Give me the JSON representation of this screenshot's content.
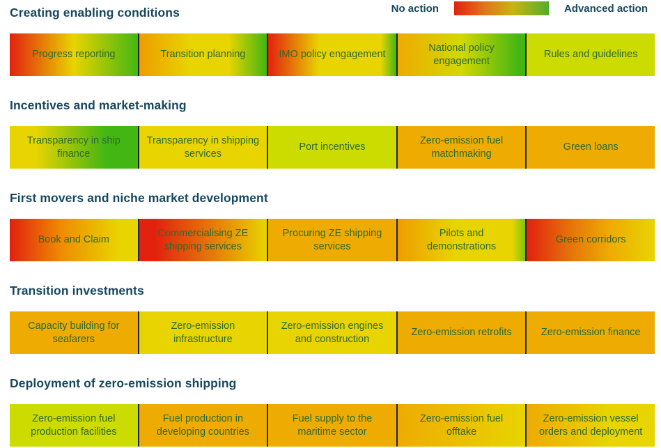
{
  "palette": {
    "red": "#e2210f",
    "orange": "#ee9d00",
    "amber": "#eeab02",
    "yellow": "#e8d400",
    "yellow_green": "#ccdb00",
    "green": "#44b613",
    "heading_text": "#17485f",
    "cell_text": "#2d6a30",
    "separator": "#1f262b"
  },
  "legend": {
    "left_label": "No action",
    "right_label": "Advanced action",
    "stops": [
      [
        "#e2210f",
        0
      ],
      [
        "#e07818",
        33
      ],
      [
        "#c8b414",
        62
      ],
      [
        "#53ae27",
        100
      ]
    ]
  },
  "sections": [
    {
      "title": "Creating enabling conditions",
      "cells": [
        {
          "label": "Progress reporting",
          "stops": [
            [
              "#e2210f",
              0
            ],
            [
              "#e8d400",
              50
            ],
            [
              "#44b613",
              100
            ]
          ]
        },
        {
          "label": "Transition planning",
          "stops": [
            [
              "#ee9d00",
              0
            ],
            [
              "#e8d400",
              40
            ],
            [
              "#e8d400",
              70
            ],
            [
              "#44b613",
              100
            ]
          ]
        },
        {
          "label": "IMO policy engagement",
          "stops": [
            [
              "#e2210f",
              0
            ],
            [
              "#e8d400",
              40
            ],
            [
              "#e8d400",
              88
            ],
            [
              "#44b613",
              100
            ]
          ]
        },
        {
          "label": "National policy engagement",
          "stops": [
            [
              "#eeab02",
              0
            ],
            [
              "#d3d800",
              50
            ],
            [
              "#44b613",
              95
            ]
          ]
        },
        {
          "label": "Rules and guidelines",
          "stops": [
            [
              "#ccdb00",
              0
            ]
          ]
        }
      ]
    },
    {
      "title": "Incentives and market-making",
      "cells": [
        {
          "label": "Transparency in ship finance",
          "stops": [
            [
              "#e8d400",
              0
            ],
            [
              "#e8d400",
              20
            ],
            [
              "#44b613",
              75
            ]
          ]
        },
        {
          "label": "Transparency in shipping services",
          "stops": [
            [
              "#e8d400",
              0
            ]
          ]
        },
        {
          "label": "Port incentives",
          "stops": [
            [
              "#ccdb00",
              0
            ]
          ]
        },
        {
          "label": "Zero-emission fuel matchmaking",
          "stops": [
            [
              "#eeab02",
              0
            ]
          ]
        },
        {
          "label": "Green loans",
          "stops": [
            [
              "#eeab02",
              0
            ]
          ]
        }
      ]
    },
    {
      "title": "First movers and niche market development",
      "cells": [
        {
          "label": "Book and Claim",
          "stops": [
            [
              "#e2210f",
              0
            ],
            [
              "#ee8c00",
              40
            ],
            [
              "#e8d400",
              85
            ]
          ]
        },
        {
          "label": "Commercialising ZE shipping services",
          "stops": [
            [
              "#e2210f",
              0
            ],
            [
              "#e2210f",
              12
            ],
            [
              "#e5750a",
              55
            ],
            [
              "#e8d400",
              100
            ]
          ]
        },
        {
          "label": "Procuring ZE shipping services",
          "stops": [
            [
              "#eeab02",
              0
            ]
          ]
        },
        {
          "label": "Pilots and demonstrations",
          "stops": [
            [
              "#ee9d00",
              0
            ],
            [
              "#e8d400",
              45
            ],
            [
              "#e8d400",
              90
            ],
            [
              "#7cc40e",
              100
            ]
          ]
        },
        {
          "label": "Green corridors",
          "stops": [
            [
              "#e2210f",
              0
            ],
            [
              "#e5750a",
              35
            ],
            [
              "#eeab02",
              65
            ],
            [
              "#e8d400",
              100
            ]
          ]
        }
      ]
    },
    {
      "title": "Transition investments",
      "cells": [
        {
          "label": "Capacity building for seafarers",
          "stops": [
            [
              "#eeab02",
              0
            ]
          ]
        },
        {
          "label": "Zero-emission infrastructure",
          "stops": [
            [
              "#e8d400",
              0
            ]
          ]
        },
        {
          "label": "Zero-emission engines and construction",
          "stops": [
            [
              "#e8d400",
              0
            ]
          ]
        },
        {
          "label": "Zero-emission retrofits",
          "stops": [
            [
              "#eeab02",
              0
            ]
          ]
        },
        {
          "label": "Zero-emission finance",
          "stops": [
            [
              "#eeab02",
              0
            ]
          ]
        }
      ]
    },
    {
      "title": "Deployment of zero-emission shipping",
      "cells": [
        {
          "label": "Zero-emission fuel production facilities",
          "stops": [
            [
              "#ccdb00",
              0
            ]
          ]
        },
        {
          "label": "Fuel production in developing countries",
          "stops": [
            [
              "#eeab02",
              0
            ]
          ]
        },
        {
          "label": "Fuel supply to the maritime sector",
          "stops": [
            [
              "#eeab02",
              0
            ]
          ]
        },
        {
          "label": "Zero-emission fuel offtake",
          "stops": [
            [
              "#eeab02",
              0
            ],
            [
              "#e8d400",
              100
            ]
          ]
        },
        {
          "label": "Zero-emission vessel orders and deployment",
          "stops": [
            [
              "#eeab02",
              0
            ],
            [
              "#e8d400",
              65
            ]
          ]
        }
      ]
    }
  ],
  "chart_data": {
    "type": "heatmap",
    "scale": {
      "min_label": "No action",
      "max_label": "Advanced action",
      "min_value": 0,
      "max_value": 1,
      "min_color": "#e2210f",
      "mid_color": "#e8d400",
      "max_color": "#44b613",
      "legend_position": "top-right"
    },
    "rows": [
      {
        "category": "Creating enabling conditions",
        "items": [
          {
            "label": "Progress reporting",
            "status_range": [
              0.0,
              1.0
            ]
          },
          {
            "label": "Transition planning",
            "status_range": [
              0.3,
              1.0
            ]
          },
          {
            "label": "IMO policy engagement",
            "status_range": [
              0.0,
              1.0
            ]
          },
          {
            "label": "National policy engagement",
            "status_range": [
              0.3,
              1.0
            ]
          },
          {
            "label": "Rules and guidelines",
            "status_range": [
              0.6,
              0.6
            ]
          }
        ]
      },
      {
        "category": "Incentives and market-making",
        "items": [
          {
            "label": "Transparency in ship finance",
            "status_range": [
              0.5,
              1.0
            ]
          },
          {
            "label": "Transparency in shipping services",
            "status_range": [
              0.5,
              0.5
            ]
          },
          {
            "label": "Port incentives",
            "status_range": [
              0.6,
              0.6
            ]
          },
          {
            "label": "Zero-emission fuel matchmaking",
            "status_range": [
              0.3,
              0.3
            ]
          },
          {
            "label": "Green loans",
            "status_range": [
              0.3,
              0.3
            ]
          }
        ]
      },
      {
        "category": "First movers and niche market development",
        "items": [
          {
            "label": "Book and Claim",
            "status_range": [
              0.0,
              0.5
            ]
          },
          {
            "label": "Commercialising ZE shipping services",
            "status_range": [
              0.0,
              0.5
            ]
          },
          {
            "label": "Procuring ZE shipping services",
            "status_range": [
              0.3,
              0.3
            ]
          },
          {
            "label": "Pilots and demonstrations",
            "status_range": [
              0.3,
              0.9
            ]
          },
          {
            "label": "Green corridors",
            "status_range": [
              0.0,
              0.5
            ]
          }
        ]
      },
      {
        "category": "Transition investments",
        "items": [
          {
            "label": "Capacity building for seafarers",
            "status_range": [
              0.3,
              0.3
            ]
          },
          {
            "label": "Zero-emission infrastructure",
            "status_range": [
              0.5,
              0.5
            ]
          },
          {
            "label": "Zero-emission engines and construction",
            "status_range": [
              0.5,
              0.5
            ]
          },
          {
            "label": "Zero-emission retrofits",
            "status_range": [
              0.3,
              0.3
            ]
          },
          {
            "label": "Zero-emission finance",
            "status_range": [
              0.3,
              0.3
            ]
          }
        ]
      },
      {
        "category": "Deployment of zero-emission shipping",
        "items": [
          {
            "label": "Zero-emission fuel production facilities",
            "status_range": [
              0.6,
              0.6
            ]
          },
          {
            "label": "Fuel production in developing countries",
            "status_range": [
              0.3,
              0.3
            ]
          },
          {
            "label": "Fuel supply to the maritime sector",
            "status_range": [
              0.3,
              0.3
            ]
          },
          {
            "label": "Zero-emission fuel offtake",
            "status_range": [
              0.3,
              0.5
            ]
          },
          {
            "label": "Zero-emission vessel orders and deployment",
            "status_range": [
              0.3,
              0.5
            ]
          }
        ]
      }
    ]
  }
}
